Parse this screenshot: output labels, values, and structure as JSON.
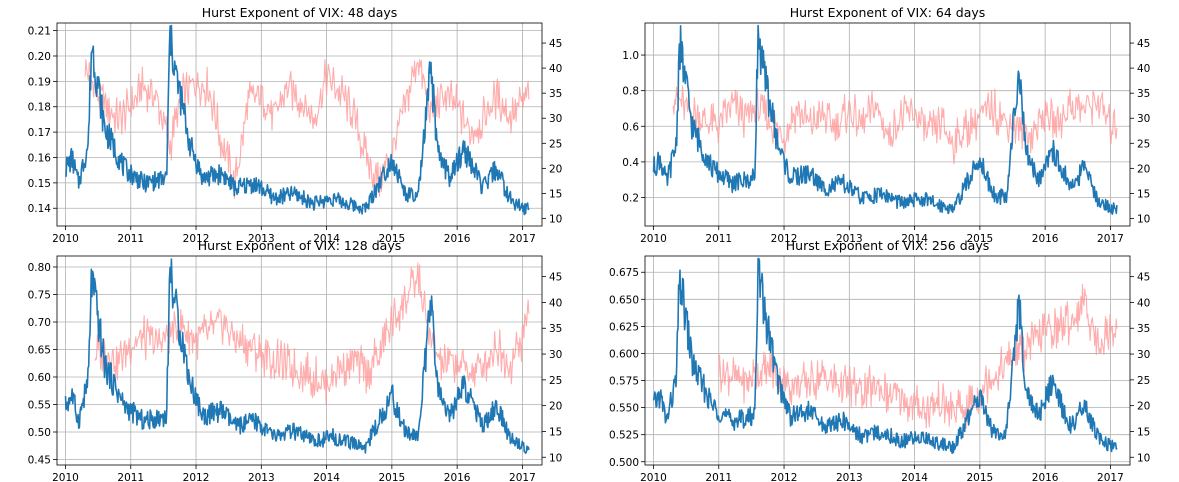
{
  "chart_data": [
    {
      "type": "line",
      "title": "Hurst Exponent of VIX: 48 days",
      "x_ticks": [
        "2010",
        "2011",
        "2012",
        "2013",
        "2014",
        "2015",
        "2016",
        "2017"
      ],
      "xlim": [
        2009.87,
        2017.3
      ],
      "y_left": {
        "lim": [
          0.133,
          0.213
        ],
        "ticks": [
          "0.14",
          "0.15",
          "0.16",
          "0.17",
          "0.18",
          "0.19",
          "0.20",
          "0.21"
        ],
        "values": [
          0.14,
          0.15,
          0.16,
          0.17,
          0.18,
          0.19,
          0.2,
          0.21
        ]
      },
      "y_right": {
        "lim": [
          8.5,
          49
        ],
        "ticks": [
          "10",
          "15",
          "20",
          "25",
          "30",
          "35",
          "40",
          "45"
        ],
        "values": [
          10,
          15,
          20,
          25,
          30,
          35,
          40,
          45
        ]
      },
      "hurst_x": [
        2010.3,
        2010.5,
        2010.8,
        2011.0,
        2011.2,
        2011.4,
        2011.6,
        2011.8,
        2012.0,
        2012.2,
        2012.4,
        2012.6,
        2012.8,
        2013.0,
        2013.2,
        2013.4,
        2013.6,
        2013.8,
        2014.0,
        2014.2,
        2014.4,
        2014.6,
        2014.8,
        2015.0,
        2015.2,
        2015.4,
        2015.6,
        2015.8,
        2016.0,
        2016.2,
        2016.4,
        2016.6,
        2016.8,
        2017.0,
        2017.1
      ],
      "hurst_y": [
        0.195,
        0.185,
        0.175,
        0.18,
        0.188,
        0.183,
        0.165,
        0.185,
        0.19,
        0.187,
        0.165,
        0.15,
        0.182,
        0.185,
        0.176,
        0.188,
        0.183,
        0.175,
        0.192,
        0.186,
        0.178,
        0.16,
        0.15,
        0.162,
        0.18,
        0.2,
        0.176,
        0.185,
        0.18,
        0.17,
        0.175,
        0.184,
        0.176,
        0.182,
        0.186
      ],
      "vix_x": [
        2010.0,
        2010.1,
        2010.2,
        2010.35,
        2010.4,
        2010.6,
        2010.9,
        2011.2,
        2011.55,
        2011.6,
        2011.7,
        2011.8,
        2011.9,
        2012.1,
        2012.4,
        2012.6,
        2012.9,
        2013.2,
        2013.5,
        2013.8,
        2014.1,
        2014.3,
        2014.6,
        2014.8,
        2015.0,
        2015.2,
        2015.4,
        2015.6,
        2015.7,
        2015.9,
        2016.1,
        2016.4,
        2016.6,
        2016.8,
        2017.0,
        2017.1
      ],
      "vix_y": [
        20,
        22,
        17,
        25,
        45,
        28,
        20,
        17,
        18,
        47,
        38,
        32,
        25,
        18,
        19,
        16,
        17,
        14,
        15,
        13,
        14,
        13,
        12,
        17,
        22,
        15,
        14,
        40,
        23,
        18,
        24,
        16,
        20,
        14,
        12,
        12
      ]
    },
    {
      "type": "line",
      "title": "Hurst Exponent of VIX: 64 days",
      "x_ticks": [
        "2010",
        "2011",
        "2012",
        "2013",
        "2014",
        "2015",
        "2016",
        "2017"
      ],
      "xlim": [
        2009.87,
        2017.3
      ],
      "y_left": {
        "lim": [
          0.04,
          1.18
        ],
        "ticks": [
          "0.2",
          "0.4",
          "0.6",
          "0.8",
          "1.0"
        ],
        "values": [
          0.2,
          0.4,
          0.6,
          0.8,
          1.0
        ]
      },
      "y_right": {
        "lim": [
          8.5,
          49
        ],
        "ticks": [
          "10",
          "15",
          "20",
          "25",
          "30",
          "35",
          "40",
          "45"
        ],
        "values": [
          10,
          15,
          20,
          25,
          30,
          35,
          40,
          45
        ]
      },
      "hurst_x": [
        2010.3,
        2010.5,
        2010.8,
        2011.0,
        2011.2,
        2011.4,
        2011.6,
        2011.8,
        2012.0,
        2012.2,
        2012.4,
        2012.6,
        2012.8,
        2013.0,
        2013.2,
        2013.4,
        2013.6,
        2013.8,
        2014.0,
        2014.2,
        2014.4,
        2014.6,
        2014.8,
        2015.0,
        2015.2,
        2015.4,
        2015.6,
        2015.8,
        2016.0,
        2016.2,
        2016.4,
        2016.6,
        2016.8,
        2017.0,
        2017.1
      ],
      "hurst_y": [
        0.78,
        0.7,
        0.62,
        0.6,
        0.72,
        0.65,
        0.7,
        0.62,
        0.55,
        0.7,
        0.6,
        0.66,
        0.58,
        0.7,
        0.6,
        0.72,
        0.55,
        0.65,
        0.68,
        0.55,
        0.62,
        0.5,
        0.58,
        0.66,
        0.7,
        0.62,
        0.6,
        0.55,
        0.68,
        0.62,
        0.72,
        0.7,
        0.75,
        0.6,
        0.62
      ],
      "vix_x": [
        2010.0,
        2010.1,
        2010.2,
        2010.35,
        2010.4,
        2010.6,
        2010.9,
        2011.2,
        2011.55,
        2011.6,
        2011.7,
        2011.8,
        2011.9,
        2012.1,
        2012.4,
        2012.6,
        2012.9,
        2013.2,
        2013.5,
        2013.8,
        2014.1,
        2014.3,
        2014.6,
        2014.8,
        2015.0,
        2015.2,
        2015.4,
        2015.6,
        2015.7,
        2015.9,
        2016.1,
        2016.4,
        2016.6,
        2016.8,
        2017.0,
        2017.1
      ],
      "vix_y": [
        20,
        22,
        17,
        25,
        45,
        28,
        20,
        17,
        18,
        47,
        38,
        32,
        25,
        18,
        19,
        16,
        17,
        14,
        15,
        13,
        14,
        13,
        12,
        17,
        22,
        15,
        14,
        40,
        23,
        18,
        24,
        16,
        20,
        14,
        12,
        12
      ]
    },
    {
      "type": "line",
      "title": "Hurst Exponent of VIX: 128 days",
      "x_ticks": [
        "2010",
        "2011",
        "2012",
        "2013",
        "2014",
        "2015",
        "2016",
        "2017"
      ],
      "xlim": [
        2009.87,
        2017.3
      ],
      "y_left": {
        "lim": [
          0.44,
          0.82
        ],
        "ticks": [
          "0.45",
          "0.50",
          "0.55",
          "0.60",
          "0.65",
          "0.70",
          "0.75",
          "0.80"
        ],
        "values": [
          0.45,
          0.5,
          0.55,
          0.6,
          0.65,
          0.7,
          0.75,
          0.8
        ]
      },
      "y_right": {
        "lim": [
          8.5,
          49
        ],
        "ticks": [
          "10",
          "15",
          "20",
          "25",
          "30",
          "35",
          "40",
          "45"
        ],
        "values": [
          10,
          15,
          20,
          25,
          30,
          35,
          40,
          45
        ]
      },
      "hurst_x": [
        2010.45,
        2010.6,
        2010.8,
        2011.0,
        2011.2,
        2011.4,
        2011.6,
        2011.8,
        2012.0,
        2012.2,
        2012.4,
        2012.6,
        2012.8,
        2013.0,
        2013.2,
        2013.4,
        2013.6,
        2013.8,
        2014.0,
        2014.2,
        2014.4,
        2014.6,
        2014.8,
        2015.0,
        2015.2,
        2015.4,
        2015.6,
        2015.8,
        2016.0,
        2016.2,
        2016.4,
        2016.6,
        2016.8,
        2017.0,
        2017.1
      ],
      "hurst_y": [
        0.64,
        0.65,
        0.63,
        0.66,
        0.67,
        0.66,
        0.68,
        0.69,
        0.67,
        0.68,
        0.7,
        0.67,
        0.66,
        0.64,
        0.63,
        0.62,
        0.61,
        0.6,
        0.59,
        0.62,
        0.63,
        0.61,
        0.64,
        0.7,
        0.74,
        0.78,
        0.66,
        0.62,
        0.63,
        0.61,
        0.62,
        0.66,
        0.62,
        0.67,
        0.73
      ],
      "vix_x": [
        2010.0,
        2010.1,
        2010.2,
        2010.35,
        2010.4,
        2010.6,
        2010.9,
        2011.2,
        2011.55,
        2011.6,
        2011.7,
        2011.8,
        2011.9,
        2012.1,
        2012.4,
        2012.6,
        2012.9,
        2013.2,
        2013.5,
        2013.8,
        2014.1,
        2014.3,
        2014.6,
        2014.8,
        2015.0,
        2015.2,
        2015.4,
        2015.6,
        2015.7,
        2015.9,
        2016.1,
        2016.4,
        2016.6,
        2016.8,
        2017.0,
        2017.1
      ],
      "vix_y": [
        20,
        22,
        17,
        25,
        45,
        28,
        20,
        17,
        18,
        47,
        38,
        32,
        25,
        18,
        19,
        16,
        17,
        14,
        15,
        13,
        14,
        13,
        12,
        17,
        22,
        15,
        14,
        40,
        23,
        18,
        24,
        16,
        20,
        14,
        12,
        12
      ]
    },
    {
      "type": "line",
      "title": "Hurst Exponent of VIX: 256 days",
      "x_ticks": [
        "2010",
        "2011",
        "2012",
        "2013",
        "2014",
        "2015",
        "2016",
        "2017"
      ],
      "xlim": [
        2009.87,
        2017.3
      ],
      "y_left": {
        "lim": [
          0.497,
          0.69
        ],
        "ticks": [
          "0.500",
          "0.525",
          "0.550",
          "0.575",
          "0.600",
          "0.625",
          "0.650",
          "0.675"
        ],
        "values": [
          0.5,
          0.525,
          0.55,
          0.575,
          0.6,
          0.625,
          0.65,
          0.675
        ]
      },
      "y_right": {
        "lim": [
          8.5,
          49
        ],
        "ticks": [
          "10",
          "15",
          "20",
          "25",
          "30",
          "35",
          "40",
          "45"
        ],
        "values": [
          10,
          15,
          20,
          25,
          30,
          35,
          40,
          45
        ]
      },
      "hurst_x": [
        2011.0,
        2011.2,
        2011.4,
        2011.6,
        2011.8,
        2012.0,
        2012.2,
        2012.4,
        2012.6,
        2012.8,
        2013.0,
        2013.2,
        2013.4,
        2013.6,
        2013.8,
        2014.0,
        2014.2,
        2014.4,
        2014.6,
        2014.8,
        2015.0,
        2015.2,
        2015.4,
        2015.6,
        2015.8,
        2016.0,
        2016.2,
        2016.4,
        2016.6,
        2016.8,
        2017.0,
        2017.1
      ],
      "hurst_y": [
        0.585,
        0.58,
        0.575,
        0.58,
        0.585,
        0.575,
        0.57,
        0.575,
        0.578,
        0.572,
        0.57,
        0.565,
        0.57,
        0.562,
        0.558,
        0.552,
        0.548,
        0.555,
        0.545,
        0.55,
        0.565,
        0.58,
        0.59,
        0.6,
        0.61,
        0.62,
        0.625,
        0.63,
        0.65,
        0.61,
        0.62,
        0.625
      ],
      "vix_x": [
        2010.0,
        2010.1,
        2010.2,
        2010.35,
        2010.4,
        2010.6,
        2010.9,
        2011.2,
        2011.55,
        2011.6,
        2011.7,
        2011.8,
        2011.9,
        2012.1,
        2012.4,
        2012.6,
        2012.9,
        2013.2,
        2013.5,
        2013.8,
        2014.1,
        2014.3,
        2014.6,
        2014.8,
        2015.0,
        2015.2,
        2015.4,
        2015.6,
        2015.7,
        2015.9,
        2016.1,
        2016.4,
        2016.6,
        2016.8,
        2017.0,
        2017.1
      ],
      "vix_y": [
        20,
        22,
        17,
        25,
        45,
        28,
        20,
        17,
        18,
        47,
        38,
        32,
        25,
        18,
        19,
        16,
        17,
        14,
        15,
        13,
        14,
        13,
        12,
        17,
        22,
        15,
        14,
        40,
        23,
        18,
        24,
        16,
        20,
        14,
        12,
        12
      ]
    }
  ],
  "colors": {
    "hurst": "#ff9999",
    "vix": "#1f77b4",
    "grid": "#b0b0b0"
  }
}
